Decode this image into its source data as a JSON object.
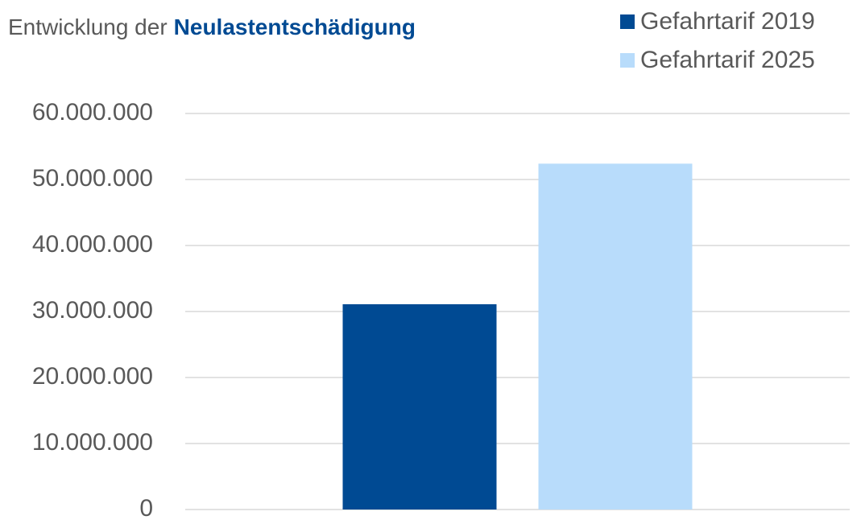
{
  "chart_data": {
    "type": "bar",
    "title": [
      "Entwicklung der",
      "Neulastentschädigung"
    ],
    "categories": [
      null
    ],
    "series": [
      {
        "name": "Gefahrtarif 2019",
        "color": "#004a93",
        "values": [
          31100000
        ]
      },
      {
        "name": "Gefahrtarif 2025",
        "color": "#b8dcfb",
        "values": [
          52400000
        ]
      }
    ],
    "ylim": [
      0,
      60000000
    ],
    "yticks": [
      0,
      {
        "value": 10000000,
        "label": "10.000.000"
      },
      {
        "value": 20000000,
        "label": "20.000.000"
      },
      {
        "value": 30000000,
        "label": "30.000.000"
      },
      {
        "value": 40000000,
        "label": "40.000.000"
      },
      {
        "value": 50000000,
        "label": "50.000.000"
      },
      {
        "value": 60000000,
        "label": "60.000.000"
      }
    ],
    "grid": true,
    "legend": "top-right"
  }
}
